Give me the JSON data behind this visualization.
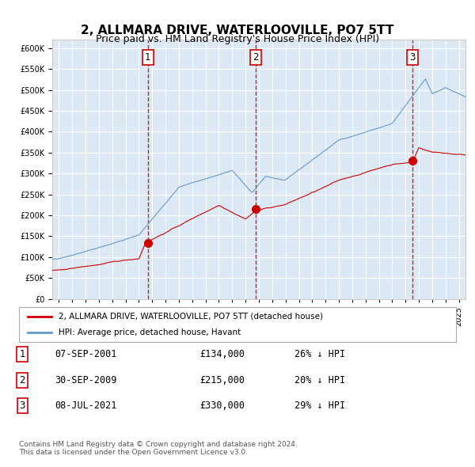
{
  "title": "2, ALLMARA DRIVE, WATERLOOVILLE, PO7 5TT",
  "subtitle": "Price paid vs. HM Land Registry's House Price Index (HPI)",
  "ylim": [
    0,
    620000
  ],
  "yticks": [
    0,
    50000,
    100000,
    150000,
    200000,
    250000,
    300000,
    350000,
    400000,
    450000,
    500000,
    550000,
    600000
  ],
  "x_start_year": 1995,
  "x_end_year": 2025,
  "background_color": "#dce9f5",
  "plot_bg_color": "#dce9f5",
  "grid_color": "#ffffff",
  "red_line_color": "#cc0000",
  "blue_line_color": "#6699cc",
  "vline_color": "#cc0000",
  "sale_points": [
    {
      "year": 2001.68,
      "value": 134000,
      "label": "1"
    },
    {
      "year": 2009.75,
      "value": 215000,
      "label": "2"
    },
    {
      "year": 2021.52,
      "value": 330000,
      "label": "3"
    }
  ],
  "legend_red_label": "2, ALLMARA DRIVE, WATERLOOVILLE, PO7 5TT (detached house)",
  "legend_blue_label": "HPI: Average price, detached house, Havant",
  "table_rows": [
    {
      "num": "1",
      "date": "07-SEP-2001",
      "price": "£134,000",
      "hpi": "26% ↓ HPI"
    },
    {
      "num": "2",
      "date": "30-SEP-2009",
      "price": "£215,000",
      "hpi": "20% ↓ HPI"
    },
    {
      "num": "3",
      "date": "08-JUL-2021",
      "price": "£330,000",
      "hpi": "29% ↓ HPI"
    }
  ],
  "footnote": "Contains HM Land Registry data © Crown copyright and database right 2024.\nThis data is licensed under the Open Government Licence v3.0."
}
